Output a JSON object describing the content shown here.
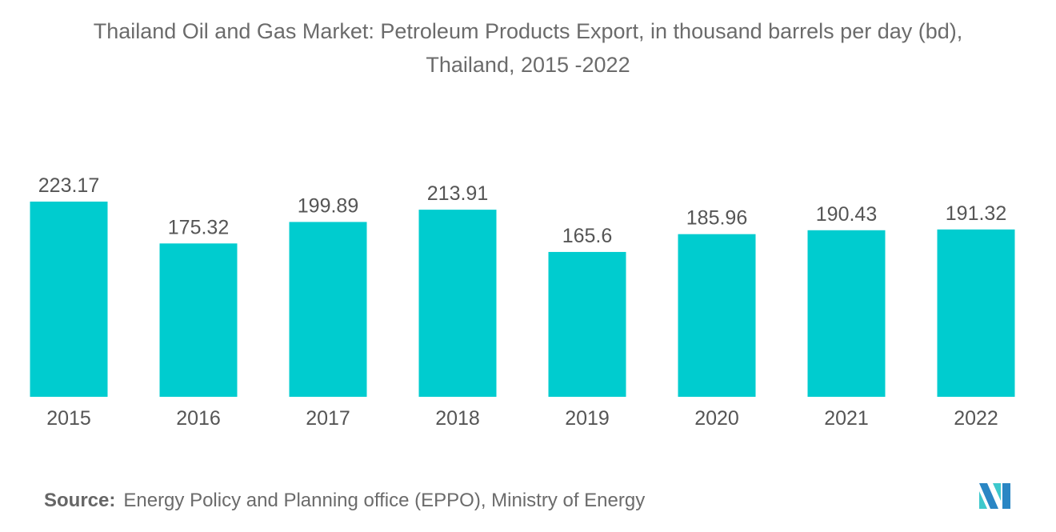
{
  "chart_data": {
    "type": "bar",
    "title": "Thailand Oil and Gas Market: Petroleum Products Export, in thousand barrels per day (bd),",
    "subtitle": "Thailand, 2015 -2022",
    "categories": [
      "2015",
      "2016",
      "2017",
      "2018",
      "2019",
      "2020",
      "2021",
      "2022"
    ],
    "values": [
      223.17,
      175.32,
      199.89,
      213.91,
      165.6,
      185.96,
      190.43,
      191.32
    ],
    "value_labels": [
      "223.17",
      "175.32",
      "199.89",
      "213.91",
      "165.6",
      "185.96",
      "190.43",
      "191.32"
    ],
    "xlabel": "",
    "ylabel": "",
    "ylim": [
      0,
      250
    ],
    "grid": false,
    "bar_color": "#00cccf"
  },
  "source": {
    "label": "Source:",
    "text": "Energy Policy and Planning office (EPPO), Ministry of Energy"
  },
  "logo": {
    "colors": [
      "#2a86c4",
      "#3dc8cc"
    ]
  }
}
